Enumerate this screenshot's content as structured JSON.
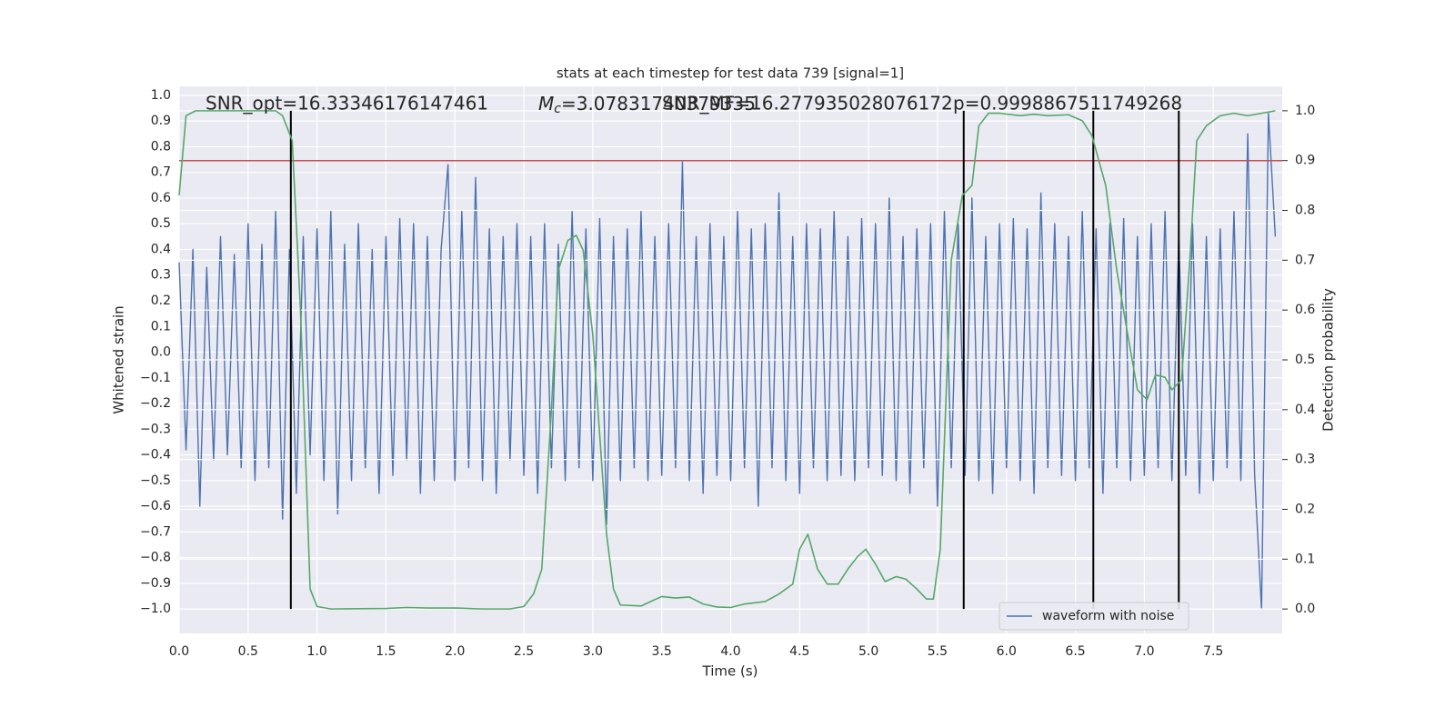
{
  "chart_data": {
    "type": "line",
    "title": "stats at each timestep for test data 739 [signal=1]",
    "xlabel": "Time (s)",
    "ylabel": "Whitened strain",
    "y2label": "Detection probability",
    "annotations": [
      {
        "text": "SNR_opt=16.33346176147461"
      },
      {
        "symbol": "M",
        "subscript": "c",
        "text": "=3.07831740379335"
      },
      {
        "text": "SNR_MF=16.277935028076172"
      },
      {
        "text": "p=0.9998867511749268"
      }
    ],
    "xlim": [
      0,
      8
    ],
    "ylim": [
      -1.095,
      1.035
    ],
    "y2lim": [
      -0.049,
      1.049
    ],
    "xticks": [
      {
        "value": 0,
        "label": "0.0"
      },
      0.5,
      {
        "value": 1,
        "label": "1.0"
      },
      1.5,
      {
        "value": 2,
        "label": "2.0"
      },
      2.5,
      {
        "value": 3,
        "label": "3.0"
      },
      3.5,
      {
        "value": 4,
        "label": "4.0"
      },
      4.5,
      {
        "value": 5,
        "label": "5.0"
      },
      5.5,
      {
        "value": 6,
        "label": "6.0"
      },
      6.5,
      {
        "value": 7,
        "label": "7.0"
      },
      7.5
    ],
    "yticks": [
      {
        "value": -1,
        "label": "−1.0"
      },
      {
        "value": -0.9,
        "label": "−0.9"
      },
      {
        "value": -0.8,
        "label": "−0.8"
      },
      {
        "value": -0.7,
        "label": "−0.7"
      },
      {
        "value": -0.6,
        "label": "−0.6"
      },
      {
        "value": -0.5,
        "label": "−0.5"
      },
      {
        "value": -0.4,
        "label": "−0.4"
      },
      {
        "value": -0.3,
        "label": "−0.3"
      },
      {
        "value": -0.2,
        "label": "−0.2"
      },
      {
        "value": -0.1,
        "label": "−0.1"
      },
      {
        "value": 0,
        "label": "0.0"
      },
      0.1,
      0.2,
      0.3,
      0.4,
      0.5,
      0.6,
      0.7,
      0.8,
      0.9,
      {
        "value": 1,
        "label": "1.0"
      }
    ],
    "y2ticks": [
      {
        "value": 0,
        "label": "0.0"
      },
      0.1,
      0.2,
      0.3,
      0.4,
      0.5,
      0.6,
      0.7,
      0.8,
      0.9,
      {
        "value": 1,
        "label": "1.0"
      }
    ],
    "grid": true,
    "legend": "lower right",
    "series": [
      {
        "name": "waveform with noise",
        "color": "#4c72b0",
        "x": [
          0,
          0.05,
          0.1,
          0.15,
          0.2,
          0.25,
          0.3,
          0.35,
          0.4,
          0.45,
          0.5,
          0.55,
          0.6,
          0.65,
          0.7,
          0.75,
          0.8,
          0.85,
          0.9,
          0.95,
          1,
          1.05,
          1.1,
          1.15,
          1.2,
          1.25,
          1.3,
          1.35,
          1.4,
          1.45,
          1.5,
          1.55,
          1.6,
          1.65,
          1.7,
          1.75,
          1.8,
          1.85,
          1.9,
          1.95,
          2,
          2.05,
          2.1,
          2.15,
          2.2,
          2.25,
          2.3,
          2.35,
          2.4,
          2.45,
          2.5,
          2.55,
          2.6,
          2.65,
          2.7,
          2.75,
          2.8,
          2.85,
          2.9,
          2.95,
          3,
          3.05,
          3.1,
          3.15,
          3.2,
          3.25,
          3.3,
          3.35,
          3.4,
          3.45,
          3.5,
          3.55,
          3.6,
          3.65,
          3.7,
          3.75,
          3.8,
          3.85,
          3.9,
          3.95,
          4,
          4.05,
          4.1,
          4.15,
          4.2,
          4.25,
          4.3,
          4.35,
          4.4,
          4.45,
          4.5,
          4.55,
          4.6,
          4.65,
          4.7,
          4.75,
          4.8,
          4.85,
          4.9,
          4.95,
          5,
          5.05,
          5.1,
          5.15,
          5.2,
          5.25,
          5.3,
          5.35,
          5.4,
          5.45,
          5.5,
          5.55,
          5.6,
          5.65,
          5.7,
          5.75,
          5.8,
          5.85,
          5.9,
          5.95,
          6,
          6.05,
          6.1,
          6.15,
          6.2,
          6.25,
          6.3,
          6.35,
          6.4,
          6.45,
          6.5,
          6.55,
          6.6,
          6.65,
          6.7,
          6.75,
          6.8,
          6.85,
          6.9,
          6.95,
          7,
          7.05,
          7.1,
          7.15,
          7.2,
          7.25,
          7.3,
          7.35,
          7.4,
          7.45,
          7.5,
          7.55,
          7.6,
          7.65,
          7.7,
          7.75,
          7.8,
          7.85,
          7.9,
          7.95
        ],
        "values": [
          0.35,
          -0.38,
          0.4,
          -0.6,
          0.33,
          -0.42,
          0.45,
          -0.4,
          0.38,
          -0.45,
          0.5,
          -0.5,
          0.42,
          -0.45,
          0.55,
          -0.65,
          0.4,
          -0.55,
          0.45,
          -0.4,
          0.48,
          -0.5,
          0.55,
          -0.63,
          0.42,
          -0.5,
          0.5,
          -0.45,
          0.4,
          -0.55,
          0.45,
          -0.48,
          0.52,
          -0.42,
          0.5,
          -0.55,
          0.45,
          -0.5,
          0.4,
          0.73,
          -0.5,
          0.55,
          -0.45,
          0.68,
          -0.5,
          0.48,
          -0.55,
          0.45,
          -0.42,
          0.5,
          -0.48,
          0.45,
          -0.55,
          0.5,
          -0.45,
          0.42,
          -0.5,
          0.55,
          -0.45,
          0.48,
          -0.5,
          0.52,
          -0.67,
          0.45,
          -0.5,
          0.48,
          -0.45,
          0.55,
          -0.5,
          0.45,
          -0.48,
          0.5,
          -0.45,
          0.74,
          -0.5,
          0.45,
          -0.55,
          0.5,
          -0.48,
          0.45,
          -0.5,
          0.55,
          -0.45,
          0.48,
          -0.6,
          0.5,
          -0.45,
          0.62,
          -0.5,
          0.45,
          -0.55,
          0.5,
          -0.45,
          0.48,
          -0.5,
          0.55,
          -0.48,
          0.45,
          -0.5,
          0.52,
          -0.45,
          0.5,
          -0.48,
          0.6,
          -0.5,
          0.45,
          -0.55,
          0.48,
          -0.45,
          0.5,
          -0.6,
          0.55,
          -0.45,
          0.5,
          -0.48,
          0.6,
          -0.5,
          0.45,
          -0.55,
          0.5,
          -0.45,
          0.52,
          -0.5,
          0.48,
          -0.55,
          0.62,
          -0.45,
          0.5,
          -0.48,
          0.45,
          -0.5,
          0.55,
          -0.45,
          0.48,
          -0.55,
          0.5,
          -0.45,
          0.52,
          -0.5,
          0.45,
          -0.48,
          0.5,
          -0.45,
          0.55,
          -0.5,
          0.45,
          -0.48,
          0.5,
          -0.55,
          0.45,
          -0.5,
          0.48,
          -0.45,
          0.55,
          -0.5,
          0.85,
          -0.48,
          -1.0,
          0.93,
          0.45
        ]
      },
      {
        "color": "#55a868",
        "axis": "y2",
        "x": [
          0,
          0.05,
          0.12,
          0.3,
          0.5,
          0.7,
          0.75,
          0.82,
          0.88,
          0.95,
          1,
          1.1,
          1.5,
          1.65,
          1.8,
          2,
          2.2,
          2.4,
          2.5,
          2.57,
          2.63,
          2.7,
          2.75,
          2.82,
          2.88,
          2.93,
          3,
          3.1,
          3.15,
          3.2,
          3.35,
          3.42,
          3.5,
          3.6,
          3.7,
          3.8,
          3.9,
          4,
          4.1,
          4.25,
          4.35,
          4.45,
          4.5,
          4.56,
          4.63,
          4.7,
          4.78,
          4.85,
          4.92,
          4.98,
          5.05,
          5.12,
          5.2,
          5.27,
          5.35,
          5.42,
          5.47,
          5.52,
          5.6,
          5.68,
          5.75,
          5.8,
          5.87,
          5.95,
          6.1,
          6.2,
          6.3,
          6.45,
          6.55,
          6.62,
          6.67,
          6.72,
          6.8,
          6.88,
          6.95,
          7.02,
          7.08,
          7.15,
          7.2,
          7.27,
          7.33,
          7.38,
          7.45,
          7.55,
          7.65,
          7.75,
          7.85,
          7.95
        ],
        "values": [
          0.83,
          0.99,
          1,
          1,
          1,
          1,
          0.99,
          0.94,
          0.6,
          0.04,
          0.005,
          0,
          0.001,
          0.003,
          0.002,
          0.002,
          0,
          0,
          0.005,
          0.03,
          0.08,
          0.4,
          0.68,
          0.74,
          0.75,
          0.72,
          0.55,
          0.15,
          0.04,
          0.008,
          0.006,
          0.015,
          0.025,
          0.022,
          0.024,
          0.01,
          0.004,
          0.003,
          0.01,
          0.015,
          0.03,
          0.05,
          0.12,
          0.15,
          0.08,
          0.05,
          0.05,
          0.08,
          0.105,
          0.12,
          0.09,
          0.055,
          0.065,
          0.06,
          0.04,
          0.02,
          0.02,
          0.12,
          0.7,
          0.83,
          0.85,
          0.97,
          0.995,
          0.995,
          0.99,
          0.993,
          0.99,
          0.992,
          0.98,
          0.95,
          0.9,
          0.85,
          0.68,
          0.55,
          0.44,
          0.42,
          0.47,
          0.465,
          0.44,
          0.46,
          0.7,
          0.94,
          0.97,
          0.99,
          0.995,
          0.99,
          0.995,
          1
        ]
      }
    ],
    "vlines": {
      "x": [
        0.81,
        5.69,
        6.63,
        7.25
      ],
      "ymin": -1.0,
      "ymax": 0.94,
      "color": "#000000"
    },
    "threshold": {
      "value": 0.9,
      "axis": "y2",
      "color": "#c44e52"
    }
  }
}
